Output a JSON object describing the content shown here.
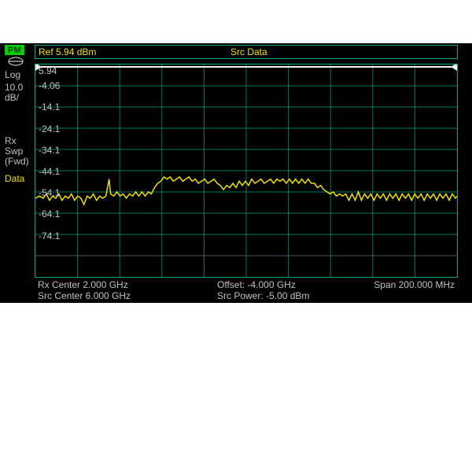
{
  "left_panel": {
    "pm_label": "PM",
    "log_label": "Log",
    "scale_value": "10.0",
    "scale_unit": "dB/",
    "rx_label": "Rx",
    "swp_label": "Swp",
    "fwd_label": "(Fwd)",
    "data_label": "Data"
  },
  "header": {
    "ref_label": "Ref 5.94 dBm",
    "src_label": "Src Data"
  },
  "chart": {
    "type": "line",
    "background_color": "#000000",
    "grid_color": "#00aa88",
    "trace_color": "#f0e000",
    "ref_line_color": "#f0f0f0",
    "y_labels": [
      "5.94",
      "-4.06",
      "-14.1",
      "-24.1",
      "-34.1",
      "-44.1",
      "-54.1",
      "-64.1",
      "-74.1"
    ],
    "ylim": [
      -94.06,
      5.94
    ],
    "ref_level": 5.94,
    "db_per_div": 10.0,
    "x_divisions": 10,
    "y_divisions": 10,
    "label_color": "#c0c0c0",
    "label_fontsize": 12,
    "trace_points": [
      [
        0,
        -57
      ],
      [
        5,
        -56
      ],
      [
        10,
        -57
      ],
      [
        14,
        -55
      ],
      [
        18,
        -58
      ],
      [
        22,
        -56
      ],
      [
        26,
        -57
      ],
      [
        30,
        -55
      ],
      [
        34,
        -58
      ],
      [
        38,
        -56
      ],
      [
        42,
        -57
      ],
      [
        46,
        -55
      ],
      [
        50,
        -58
      ],
      [
        54,
        -56
      ],
      [
        58,
        -57
      ],
      [
        62,
        -60
      ],
      [
        66,
        -56
      ],
      [
        70,
        -57
      ],
      [
        74,
        -55
      ],
      [
        78,
        -58
      ],
      [
        82,
        -56
      ],
      [
        86,
        -57
      ],
      [
        90,
        -56
      ],
      [
        94,
        -48
      ],
      [
        96,
        -55
      ],
      [
        100,
        -56
      ],
      [
        104,
        -54
      ],
      [
        108,
        -56
      ],
      [
        112,
        -55
      ],
      [
        116,
        -57
      ],
      [
        120,
        -55
      ],
      [
        124,
        -56
      ],
      [
        128,
        -54
      ],
      [
        132,
        -56
      ],
      [
        136,
        -54
      ],
      [
        140,
        -56
      ],
      [
        144,
        -54
      ],
      [
        148,
        -55
      ],
      [
        152,
        -52
      ],
      [
        156,
        -50
      ],
      [
        160,
        -49
      ],
      [
        164,
        -47
      ],
      [
        168,
        -48
      ],
      [
        172,
        -47
      ],
      [
        176,
        -49
      ],
      [
        180,
        -48
      ],
      [
        184,
        -47
      ],
      [
        188,
        -49
      ],
      [
        192,
        -48
      ],
      [
        196,
        -47
      ],
      [
        200,
        -49
      ],
      [
        204,
        -48
      ],
      [
        208,
        -50
      ],
      [
        212,
        -49
      ],
      [
        216,
        -48
      ],
      [
        220,
        -50
      ],
      [
        224,
        -49
      ],
      [
        228,
        -48
      ],
      [
        232,
        -50
      ],
      [
        236,
        -51
      ],
      [
        240,
        -53
      ],
      [
        244,
        -51
      ],
      [
        248,
        -52
      ],
      [
        252,
        -50
      ],
      [
        256,
        -52
      ],
      [
        260,
        -49
      ],
      [
        264,
        -51
      ],
      [
        268,
        -49
      ],
      [
        272,
        -51
      ],
      [
        276,
        -48
      ],
      [
        280,
        -50
      ],
      [
        284,
        -49
      ],
      [
        288,
        -48
      ],
      [
        292,
        -50
      ],
      [
        296,
        -49
      ],
      [
        300,
        -48
      ],
      [
        304,
        -50
      ],
      [
        308,
        -48
      ],
      [
        312,
        -49
      ],
      [
        316,
        -48
      ],
      [
        320,
        -50
      ],
      [
        324,
        -48
      ],
      [
        328,
        -50
      ],
      [
        332,
        -48
      ],
      [
        336,
        -50
      ],
      [
        340,
        -48
      ],
      [
        344,
        -50
      ],
      [
        348,
        -48
      ],
      [
        352,
        -50
      ],
      [
        356,
        -50
      ],
      [
        360,
        -52
      ],
      [
        364,
        -51
      ],
      [
        368,
        -53
      ],
      [
        372,
        -54
      ],
      [
        376,
        -55
      ],
      [
        380,
        -54
      ],
      [
        384,
        -56
      ],
      [
        388,
        -55
      ],
      [
        392,
        -56
      ],
      [
        396,
        -55
      ],
      [
        400,
        -58
      ],
      [
        404,
        -55
      ],
      [
        408,
        -58
      ],
      [
        412,
        -54
      ],
      [
        416,
        -58
      ],
      [
        420,
        -55
      ],
      [
        424,
        -57
      ],
      [
        428,
        -55
      ],
      [
        432,
        -58
      ],
      [
        436,
        -55
      ],
      [
        440,
        -57
      ],
      [
        444,
        -55
      ],
      [
        448,
        -58
      ],
      [
        452,
        -55
      ],
      [
        456,
        -57
      ],
      [
        460,
        -55
      ],
      [
        464,
        -58
      ],
      [
        468,
        -55
      ],
      [
        472,
        -57
      ],
      [
        476,
        -55
      ],
      [
        480,
        -58
      ],
      [
        484,
        -55
      ],
      [
        488,
        -57
      ],
      [
        492,
        -55
      ],
      [
        496,
        -58
      ],
      [
        500,
        -55
      ],
      [
        504,
        -57
      ],
      [
        508,
        -55
      ],
      [
        512,
        -58
      ],
      [
        516,
        -55
      ],
      [
        520,
        -57
      ],
      [
        524,
        -55
      ],
      [
        528,
        -58
      ],
      [
        532,
        -55
      ],
      [
        536,
        -57
      ],
      [
        538,
        -56
      ]
    ]
  },
  "footer": {
    "rx_center": "Rx Center 2.000 GHz",
    "offset": "Offset: -4.000 GHz",
    "span": "Span 200.000 MHz",
    "src_center": "Src Center 6.000 GHz",
    "src_power": "Src Power: -5.00  dBm"
  }
}
